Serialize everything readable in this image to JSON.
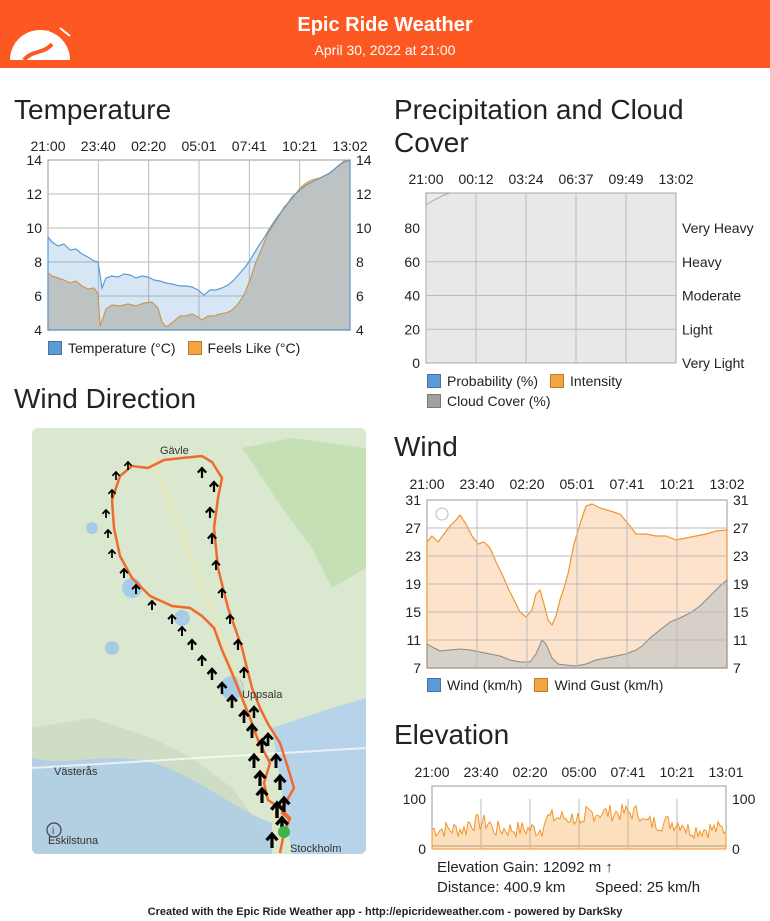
{
  "header": {
    "title": "Epic Ride Weather",
    "subtitle": "April 30, 2022 at 21:00",
    "bg_color": "#fd5722"
  },
  "temperature": {
    "title": "Temperature",
    "time_ticks": [
      "21:00",
      "23:40",
      "02:20",
      "05:01",
      "07:41",
      "10:21",
      "13:02"
    ],
    "y_ticks": [
      "14",
      "12",
      "10",
      "8",
      "6",
      "4"
    ],
    "legend": [
      {
        "label": "Temperature (°C)",
        "color": "#5b9bd5"
      },
      {
        "label": "Feels Like (°C)",
        "color": "#f5a442"
      }
    ]
  },
  "precipitation": {
    "title": "Precipitation and Cloud Cover",
    "time_ticks": [
      "21:00",
      "00:12",
      "03:24",
      "06:37",
      "09:49",
      "13:02"
    ],
    "y_ticks": [
      "80",
      "60",
      "40",
      "20",
      "0"
    ],
    "right_labels": [
      "Very Heavy",
      "Heavy",
      "Moderate",
      "Light",
      "Very Light"
    ],
    "legend": [
      {
        "label": "Probability (%)",
        "color": "#5b9bd5"
      },
      {
        "label": "Intensity",
        "color": "#f5a442"
      },
      {
        "label": "Cloud Cover (%)",
        "color": "#a0a0a0"
      }
    ]
  },
  "wind_direction": {
    "title": "Wind Direction",
    "places": [
      "Gävle",
      "Uppsala",
      "Västerås",
      "Eskilstuna",
      "Stockholm"
    ],
    "info_icon": "info-icon"
  },
  "wind": {
    "title": "Wind",
    "time_ticks": [
      "21:00",
      "23:40",
      "02:20",
      "05:01",
      "07:41",
      "10:21",
      "13:02"
    ],
    "y_ticks": [
      "31",
      "27",
      "23",
      "19",
      "15",
      "11",
      "7"
    ],
    "legend": [
      {
        "label": "Wind (km/h)",
        "color": "#5b9bd5"
      },
      {
        "label": "Wind Gust (km/h)",
        "color": "#f5a442"
      }
    ]
  },
  "elevation": {
    "title": "Elevation",
    "time_ticks": [
      "21:00",
      "23:40",
      "02:20",
      "05:00",
      "07:41",
      "10:21",
      "13:01"
    ],
    "y_ticks": [
      "100",
      "0"
    ],
    "gain": "Elevation Gain: 12092 m ↑",
    "distance": "Distance: 400.9 km",
    "speed": "Speed: 25 km/h"
  },
  "footer": "Created with the Epic Ride Weather app - http://epicrideweather.com - powered by DarkSky",
  "chart_data": [
    {
      "type": "area",
      "title": "Temperature",
      "x": [
        "21:00",
        "23:40",
        "02:20",
        "05:01",
        "07:41",
        "10:21",
        "13:02"
      ],
      "ylim": [
        4,
        14
      ],
      "series": [
        {
          "name": "Temperature (°C)",
          "values": [
            9.6,
            7.3,
            7.0,
            6.3,
            7.2,
            11.0,
            14.0
          ]
        },
        {
          "name": "Feels Like (°C)",
          "values": [
            7.7,
            5.6,
            5.0,
            4.8,
            6.0,
            11.2,
            14.0
          ]
        }
      ]
    },
    {
      "type": "area",
      "title": "Precipitation and Cloud Cover",
      "x": [
        "21:00",
        "00:12",
        "03:24",
        "06:37",
        "09:49",
        "13:02"
      ],
      "ylim": [
        0,
        100
      ],
      "series": [
        {
          "name": "Probability (%)",
          "values": [
            0,
            0,
            0,
            0,
            0,
            0
          ]
        },
        {
          "name": "Intensity",
          "values": [
            0,
            0,
            0,
            0,
            0,
            0
          ]
        },
        {
          "name": "Cloud Cover (%)",
          "values": [
            93,
            100,
            100,
            100,
            100,
            100
          ]
        }
      ]
    },
    {
      "type": "area",
      "title": "Wind",
      "x": [
        "21:00",
        "23:40",
        "02:20",
        "05:01",
        "07:41",
        "10:21",
        "13:02"
      ],
      "ylim": [
        7,
        31
      ],
      "series": [
        {
          "name": "Wind (km/h)",
          "values": [
            11,
            9.6,
            9.1,
            7.1,
            9.0,
            14.0,
            20.5
          ]
        },
        {
          "name": "Wind Gust (km/h)",
          "values": [
            27,
            27,
            17,
            19,
            31,
            27.5,
            28.5
          ]
        }
      ]
    },
    {
      "type": "area",
      "title": "Elevation",
      "x": [
        "21:00",
        "23:40",
        "02:20",
        "05:00",
        "07:41",
        "10:21",
        "13:01"
      ],
      "ylim": [
        0,
        100
      ],
      "series": [
        {
          "name": "Elevation",
          "values": [
            25,
            30,
            35,
            70,
            45,
            30,
            25
          ]
        }
      ]
    }
  ]
}
